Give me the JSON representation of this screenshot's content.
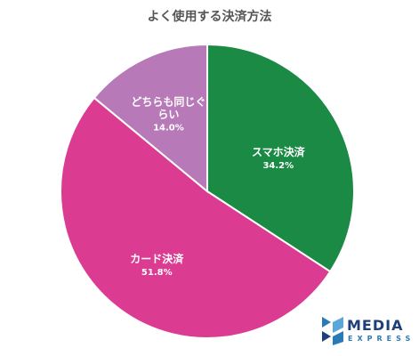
{
  "chart_data": {
    "type": "pie",
    "title": "よく使用する決済方法",
    "slices": [
      {
        "label": "スマホ決済",
        "value": 34.2,
        "value_label": "34.2%",
        "color": "#1b8a45"
      },
      {
        "label": "カード決済",
        "value": 51.8,
        "value_label": "51.8%",
        "color": "#dc3b92"
      },
      {
        "label": "どちらも同じぐらい",
        "value": 14.0,
        "value_label": "14.0%",
        "color": "#b779b7"
      }
    ]
  },
  "brand": {
    "name": "MEDIA",
    "sub": "EXPRESS"
  }
}
